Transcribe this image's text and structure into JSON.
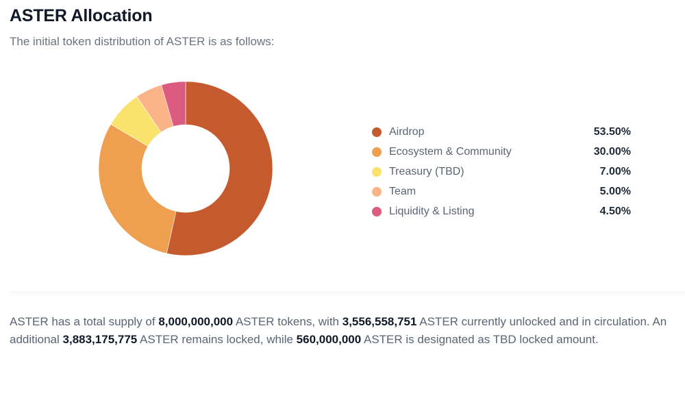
{
  "header": {
    "title": "ASTER Allocation",
    "subtitle": "The initial token distribution of ASTER is as follows:"
  },
  "chart_data": {
    "type": "pie",
    "variant": "donut",
    "title": "ASTER Allocation",
    "categories": [
      "Airdrop",
      "Ecosystem & Community",
      "Treasury (TBD)",
      "Team",
      "Liquidity & Listing"
    ],
    "values": [
      53.5,
      30.0,
      7.0,
      5.0,
      4.5
    ],
    "value_labels": [
      "53.50%",
      "30.00%",
      "7.00%",
      "5.00%",
      "4.50%"
    ],
    "colors": [
      "#c65a2f",
      "#ef9f50",
      "#fae36c",
      "#fbb388",
      "#dc5b80"
    ],
    "legend_position": "right",
    "start_angle_deg": 0,
    "direction": "clockwise"
  },
  "legend": {
    "items": [
      {
        "label": "Airdrop",
        "value": "53.50%",
        "color": "#c65a2f"
      },
      {
        "label": "Ecosystem & Community",
        "value": "30.00%",
        "color": "#ef9f50"
      },
      {
        "label": "Treasury (TBD)",
        "value": "7.00%",
        "color": "#fae36c"
      },
      {
        "label": "Team",
        "value": "5.00%",
        "color": "#fbb388"
      },
      {
        "label": "Liquidity & Listing",
        "value": "4.50%",
        "color": "#dc5b80"
      }
    ]
  },
  "summary": {
    "t1": "ASTER has a total supply of ",
    "total_supply": "8,000,000,000",
    "t2": " ASTER tokens, with ",
    "unlocked": "3,556,558,751",
    "t3": " ASTER currently unlocked and in circulation. An additional ",
    "locked": "3,883,175,775",
    "t4": " ASTER remains locked, while ",
    "tbd_locked": "560,000,000",
    "t5": " ASTER is designated as TBD locked amount."
  }
}
